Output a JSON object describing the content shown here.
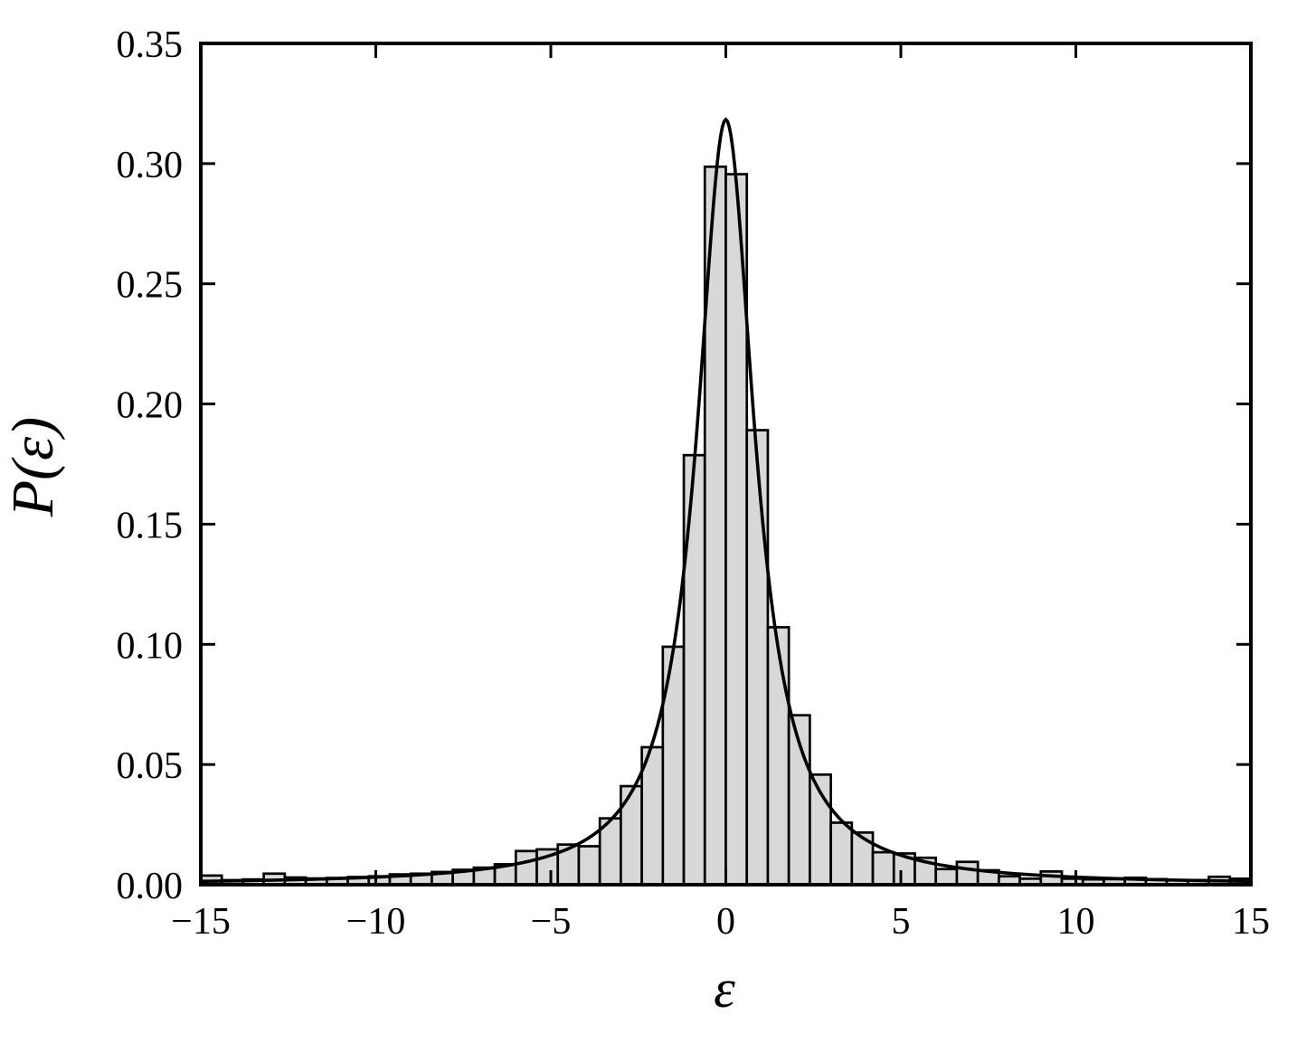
{
  "figure": {
    "background": "#ffffff",
    "ink_color": "#000000",
    "bar_fill_color": "#d8d8d8"
  },
  "chart_data": {
    "type": "bar",
    "subtype": "histogram-with-fit-curve",
    "title": "",
    "xlabel": "ε",
    "ylabel": "P(ε)",
    "xlim": [
      -15,
      15
    ],
    "ylim": [
      0,
      0.35
    ],
    "grid": false,
    "legend": null,
    "x_ticks": {
      "values": [
        -15,
        -10,
        -5,
        0,
        5,
        10,
        15
      ],
      "labels": [
        "−15",
        "−10",
        "−5",
        "0",
        "5",
        "10",
        "15"
      ]
    },
    "y_ticks": {
      "values": [
        0.0,
        0.05,
        0.1,
        0.15,
        0.2,
        0.25,
        0.3,
        0.35
      ],
      "labels": [
        "0.00",
        "0.05",
        "0.10",
        "0.15",
        "0.20",
        "0.25",
        "0.30",
        "0.35"
      ]
    },
    "histogram": {
      "bin_start": -15,
      "bin_width": 0.6,
      "bin_count": 50,
      "values": [
        0.0038,
        0.0019,
        0.0022,
        0.0046,
        0.003,
        0.0026,
        0.0028,
        0.0032,
        0.0035,
        0.0043,
        0.0046,
        0.0053,
        0.0062,
        0.0071,
        0.0085,
        0.014,
        0.0147,
        0.0167,
        0.016,
        0.0276,
        0.041,
        0.0572,
        0.099,
        0.1787,
        0.2987,
        0.2956,
        0.1891,
        0.1071,
        0.0705,
        0.0458,
        0.0258,
        0.0217,
        0.0135,
        0.013,
        0.0112,
        0.0065,
        0.0095,
        0.006,
        0.0035,
        0.0025,
        0.0055,
        0.0025,
        0.0022,
        0.0023,
        0.0029,
        0.0023,
        0.0019,
        0.0019,
        0.0033,
        0.0025
      ]
    },
    "fit_curve": {
      "name": "cauchy-lorentzian-pdf",
      "center": 0,
      "gamma": 1.0,
      "peak_value": 0.3183
    }
  }
}
